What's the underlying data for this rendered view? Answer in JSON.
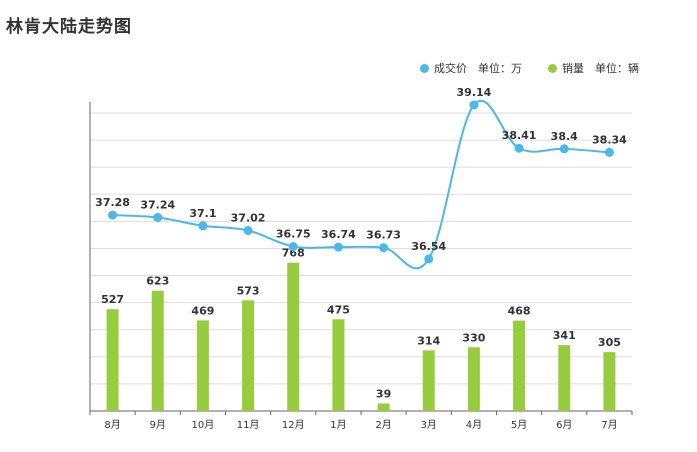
{
  "title": "林肯大陆走势图",
  "legend": {
    "price_label": "成交价",
    "price_unit": "单位：万",
    "sales_label": "销量",
    "sales_unit": "单位：辆"
  },
  "colors": {
    "line": "#4ab8ea",
    "bar": "#97cc3f",
    "grid": "#dddddd",
    "axis": "#666666"
  },
  "chart_data": {
    "type": "bar+line",
    "categories": [
      "8月",
      "9月",
      "10月",
      "11月",
      "12月",
      "1月",
      "2月",
      "3月",
      "4月",
      "5月",
      "6月",
      "7月"
    ],
    "series": [
      {
        "name": "成交价",
        "type": "line",
        "values": [
          37.28,
          37.24,
          37.1,
          37.02,
          36.75,
          36.74,
          36.73,
          36.54,
          39.14,
          38.41,
          38.4,
          38.34
        ]
      },
      {
        "name": "销量",
        "type": "bar",
        "values": [
          527,
          623,
          469,
          573,
          768,
          475,
          39,
          314,
          330,
          468,
          341,
          305
        ]
      }
    ],
    "grid": true,
    "legend_position": "top-right"
  }
}
